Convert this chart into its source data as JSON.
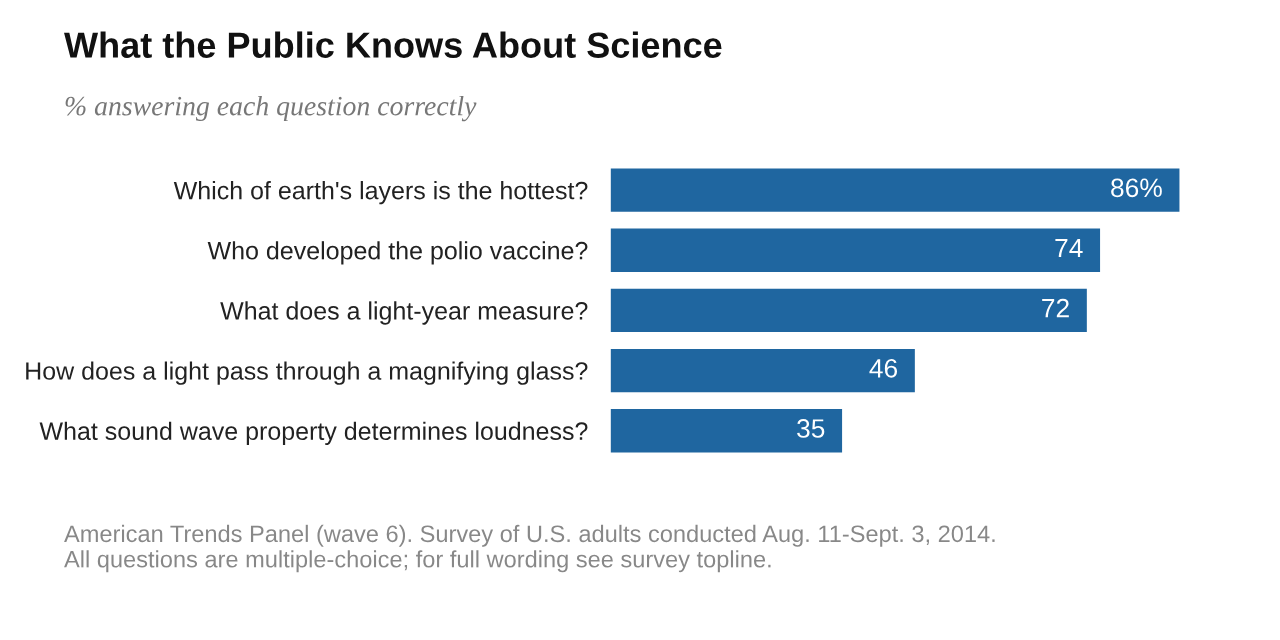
{
  "chart_data": {
    "type": "bar",
    "orientation": "horizontal",
    "title": "What the Public Knows About Science",
    "subtitle": "% answering each question correctly",
    "categories": [
      "Which of earth's layers is the hottest?",
      "Who developed the polio vaccine?",
      "What does a light-year measure?",
      "How does a light pass through a magnifying glass?",
      "What sound wave property determines loudness?"
    ],
    "values": [
      86,
      74,
      72,
      46,
      35
    ],
    "value_labels": [
      "86%",
      "74",
      "72",
      "46",
      "35"
    ],
    "color": "#1f66a0",
    "annotations": [
      "American Trends Panel (wave 6). Survey of U.S. adults conducted Aug. 11-Sept. 3, 2014. All questions are multiple-choice; for full wording see survey topline."
    ]
  }
}
